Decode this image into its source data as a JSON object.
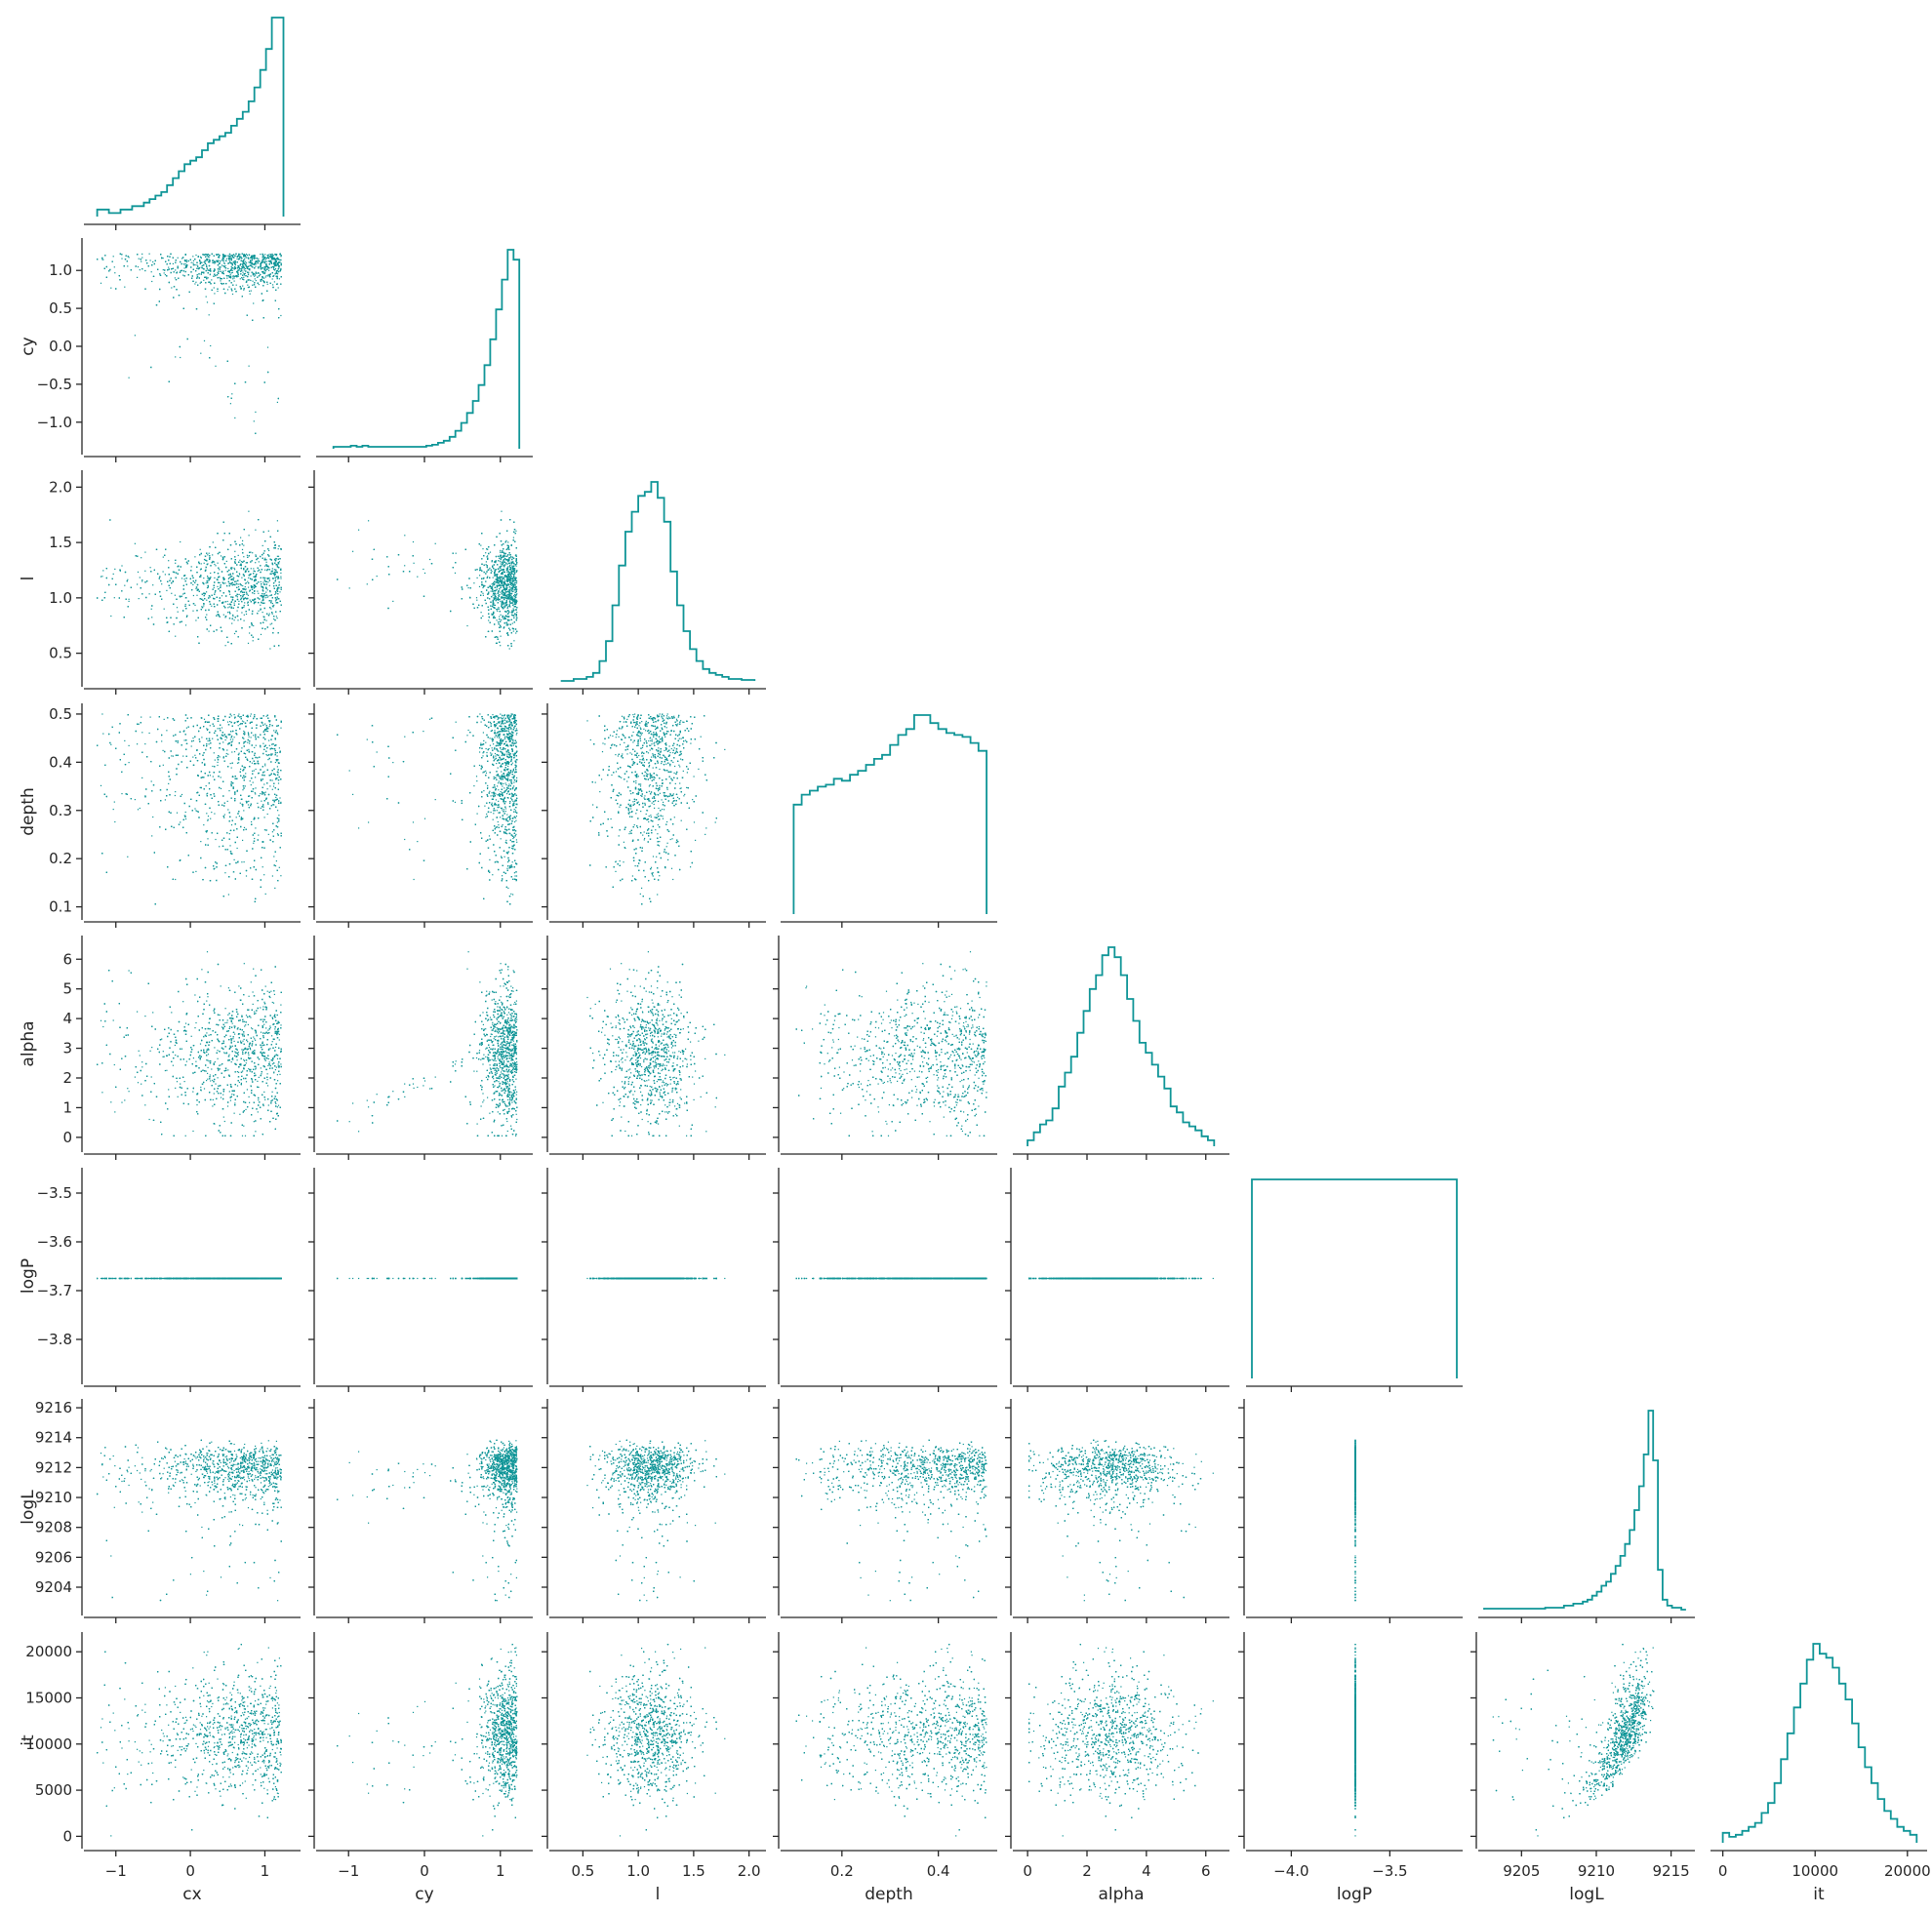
{
  "chart_data": {
    "type": "scatter",
    "description_kind": "corner pair plot (lower-triangle scatter matrix with diagonal step histograms)",
    "color": "#0f9597",
    "grid": false,
    "legend": "none",
    "variables": [
      {
        "name": "cx",
        "label": "cx",
        "range": [
          -1.35,
          1.4
        ],
        "ticks": [
          -1,
          0,
          1
        ],
        "tick_labels": [
          "−1",
          "0",
          "1"
        ]
      },
      {
        "name": "cy",
        "label": "cy",
        "range": [
          -1.35,
          1.35
        ],
        "ticks": [
          -1,
          -0.5,
          0,
          0.5,
          1
        ],
        "tick_labels": [
          "−1.0",
          "−0.5",
          "0.0",
          "0.5",
          "1.0"
        ],
        "x_ticks": [
          -1,
          0,
          1
        ],
        "x_tick_labels": [
          "−1",
          "0",
          "1"
        ]
      },
      {
        "name": "l",
        "label": "l",
        "range": [
          0.25,
          2.1
        ],
        "ticks": [
          0.5,
          1.0,
          1.5,
          2.0
        ],
        "tick_labels": [
          "0.5",
          "1.0",
          "1.5",
          "2.0"
        ]
      },
      {
        "name": "depth",
        "label": "depth",
        "range": [
          0.085,
          0.51
        ],
        "ticks": [
          0.1,
          0.2,
          0.3,
          0.4,
          0.5
        ],
        "tick_labels": [
          "0.1",
          "0.2",
          "0.3",
          "0.4",
          "0.5"
        ],
        "x_ticks": [
          0.2,
          0.4
        ],
        "x_tick_labels": [
          "0.2",
          "0.4"
        ]
      },
      {
        "name": "alpha",
        "label": "alpha",
        "range": [
          -0.3,
          6.6
        ],
        "ticks": [
          0,
          1,
          2,
          3,
          4,
          5,
          6
        ],
        "tick_labels": [
          "0",
          "1",
          "2",
          "3",
          "4",
          "5",
          "6"
        ],
        "x_ticks": [
          0,
          2,
          4,
          6
        ],
        "x_tick_labels": [
          "0",
          "2",
          "4",
          "6"
        ]
      },
      {
        "name": "logP",
        "label": "logP",
        "range": [
          -3.88,
          -3.46
        ],
        "ticks": [
          -3.8,
          -3.7,
          -3.6,
          -3.5
        ],
        "tick_labels": [
          "−3.8",
          "−3.7",
          "−3.6",
          "−3.5"
        ],
        "x_range": [
          -4.2,
          -3.16
        ],
        "x_ticks": [
          -4.0,
          -3.5
        ],
        "x_tick_labels": [
          "−4.0",
          "−3.5"
        ]
      },
      {
        "name": "logL",
        "label": "logL",
        "range": [
          9202.5,
          9216.2
        ],
        "ticks": [
          9204,
          9206,
          9208,
          9210,
          9212,
          9214,
          9216
        ],
        "tick_labels": [
          "9204",
          "9206",
          "9208",
          "9210",
          "9212",
          "9214",
          "9216"
        ],
        "x_ticks": [
          9205,
          9210,
          9215
        ],
        "x_tick_labels": [
          "9205",
          "9210",
          "9215"
        ]
      },
      {
        "name": "it",
        "label": "it",
        "range": [
          -700,
          21500
        ],
        "ticks": [
          0,
          5000,
          10000,
          15000,
          20000
        ],
        "tick_labels": [
          "0",
          "5000",
          "10000",
          "15000",
          "20000"
        ],
        "x_ticks": [
          0,
          10000,
          20000
        ],
        "x_tick_labels": [
          "0",
          "10000",
          "20000"
        ]
      }
    ],
    "histograms": [
      {
        "variable": "cx",
        "edges_range": [
          -1.25,
          1.25
        ],
        "counts": [
          2,
          2,
          1,
          1,
          2,
          2,
          3,
          3,
          4,
          5,
          6,
          7,
          9,
          11,
          13,
          15,
          16,
          17,
          19,
          21,
          22,
          23,
          24,
          26,
          28,
          30,
          33,
          37,
          42,
          48,
          57,
          57
        ]
      },
      {
        "variable": "cy",
        "edges_range": [
          -1.2,
          1.25
        ],
        "counts": [
          1,
          1,
          1,
          1.5,
          1,
          1.5,
          1,
          1,
          1,
          1,
          1,
          1,
          1,
          1,
          1,
          1,
          1.5,
          2,
          3,
          4,
          6,
          9,
          13,
          18,
          24,
          32,
          42,
          55,
          70,
          85,
          100,
          95
        ]
      },
      {
        "variable": "l",
        "edges_range": [
          0.3,
          2.05
        ],
        "counts": [
          0,
          0,
          1,
          1,
          2,
          4,
          10,
          20,
          38,
          58,
          75,
          85,
          93,
          95,
          100,
          92,
          80,
          55,
          38,
          25,
          16,
          10,
          6,
          4,
          3,
          2,
          1,
          1,
          0.5,
          0.5
        ]
      },
      {
        "variable": "depth",
        "edges_range": [
          0.1,
          0.5
        ],
        "counts": [
          55,
          60,
          62,
          64,
          65,
          68,
          67,
          70,
          72,
          75,
          78,
          80,
          85,
          90,
          93,
          100,
          100,
          96,
          93,
          91,
          90,
          89,
          86,
          82
        ]
      },
      {
        "variable": "alpha",
        "edges_range": [
          0.0,
          6.28
        ],
        "counts": [
          3,
          7,
          11,
          13,
          19,
          30,
          37,
          45,
          57,
          68,
          79,
          86,
          96,
          100,
          95,
          86,
          74,
          63,
          52,
          47,
          41,
          35,
          29,
          20,
          17,
          12,
          10,
          8,
          5,
          3
        ]
      },
      {
        "variable": "logP",
        "edges_range": [
          -4.2,
          -3.16
        ],
        "counts": [
          100
        ]
      },
      {
        "variable": "logL",
        "edges_range": [
          9202.5,
          9216
        ],
        "counts": [
          0.5,
          0.5,
          0.5,
          0.5,
          0.5,
          0.5,
          0.5,
          0.5,
          0.5,
          0.5,
          0.5,
          0.5,
          0.5,
          1,
          1,
          1,
          1,
          2,
          2,
          3,
          3,
          4,
          5,
          7,
          9,
          12,
          14,
          18,
          22,
          27,
          33,
          40,
          50,
          62,
          78,
          100,
          75,
          20,
          5,
          2,
          1,
          1,
          0
        ]
      },
      {
        "variable": "it",
        "edges_range": [
          0,
          21000
        ],
        "counts": [
          5,
          3,
          4,
          6,
          8,
          10,
          15,
          20,
          30,
          42,
          55,
          68,
          80,
          92,
          100,
          95,
          93,
          88,
          80,
          72,
          60,
          48,
          38,
          30,
          22,
          16,
          12,
          8,
          6,
          4
        ]
      }
    ],
    "sample_count_note": "≈10000 posterior samples rendered as small scatter points"
  }
}
